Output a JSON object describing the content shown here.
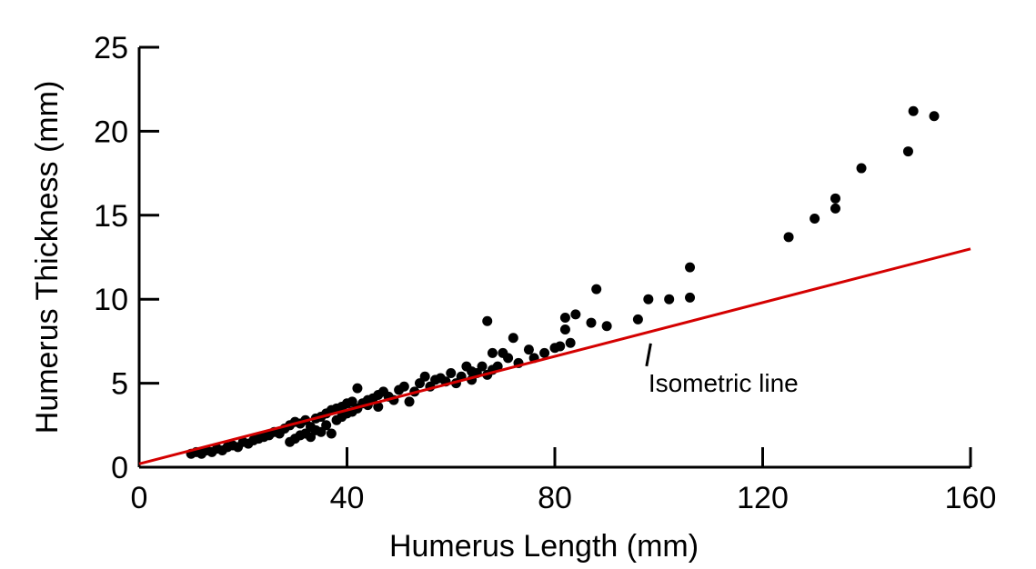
{
  "chart_data": {
    "type": "scatter",
    "xlabel": "Humerus Length (mm)",
    "ylabel": "Humerus Thickness (mm)",
    "xlim": [
      0,
      160
    ],
    "ylim": [
      0,
      25
    ],
    "xticks": [
      0,
      40,
      80,
      120,
      160
    ],
    "yticks": [
      0,
      5,
      10,
      15,
      20,
      25
    ],
    "grid": false,
    "legend": "none",
    "colors": {
      "points": "#000000",
      "line": "#d40000",
      "axes": "#000000"
    },
    "series": [
      {
        "kind": "scatter",
        "points": [
          [
            10,
            0.8
          ],
          [
            11,
            0.9
          ],
          [
            12,
            0.8
          ],
          [
            13,
            1.0
          ],
          [
            14,
            0.9
          ],
          [
            15,
            1.1
          ],
          [
            16,
            1.0
          ],
          [
            17,
            1.2
          ],
          [
            18,
            1.3
          ],
          [
            19,
            1.2
          ],
          [
            20,
            1.5
          ],
          [
            21,
            1.4
          ],
          [
            22,
            1.6
          ],
          [
            23,
            1.7
          ],
          [
            24,
            1.8
          ],
          [
            25,
            1.9
          ],
          [
            26,
            2.1
          ],
          [
            27,
            2.0
          ],
          [
            28,
            2.3
          ],
          [
            29,
            2.5
          ],
          [
            29,
            1.5
          ],
          [
            30,
            2.7
          ],
          [
            30,
            1.7
          ],
          [
            31,
            2.6
          ],
          [
            31,
            1.9
          ],
          [
            32,
            2.8
          ],
          [
            32,
            2.0
          ],
          [
            33,
            2.4
          ],
          [
            33,
            1.8
          ],
          [
            34,
            2.9
          ],
          [
            34,
            2.2
          ],
          [
            35,
            3.0
          ],
          [
            35,
            2.1
          ],
          [
            36,
            3.2
          ],
          [
            36,
            2.5
          ],
          [
            37,
            3.4
          ],
          [
            37,
            2.0
          ],
          [
            38,
            3.5
          ],
          [
            38,
            2.8
          ],
          [
            39,
            3.6
          ],
          [
            39,
            3.0
          ],
          [
            40,
            3.8
          ],
          [
            40,
            3.2
          ],
          [
            41,
            3.3
          ],
          [
            41,
            3.9
          ],
          [
            42,
            4.7
          ],
          [
            42,
            3.5
          ],
          [
            43,
            3.8
          ],
          [
            44,
            3.7
          ],
          [
            44,
            4.0
          ],
          [
            45,
            4.1
          ],
          [
            46,
            4.3
          ],
          [
            46,
            3.6
          ],
          [
            47,
            4.5
          ],
          [
            48,
            4.2
          ],
          [
            49,
            4.0
          ],
          [
            50,
            4.6
          ],
          [
            51,
            4.8
          ],
          [
            52,
            3.9
          ],
          [
            53,
            4.5
          ],
          [
            54,
            5.0
          ],
          [
            55,
            5.4
          ],
          [
            56,
            4.8
          ],
          [
            57,
            5.2
          ],
          [
            58,
            5.3
          ],
          [
            59,
            5.1
          ],
          [
            60,
            5.6
          ],
          [
            61,
            5.0
          ],
          [
            62,
            5.4
          ],
          [
            63,
            6.0
          ],
          [
            64,
            5.7
          ],
          [
            64,
            5.2
          ],
          [
            65,
            5.6
          ],
          [
            66,
            6.0
          ],
          [
            67,
            5.5
          ],
          [
            67,
            8.7
          ],
          [
            68,
            6.8
          ],
          [
            68,
            5.8
          ],
          [
            69,
            6.0
          ],
          [
            70,
            6.8
          ],
          [
            71,
            6.5
          ],
          [
            72,
            7.7
          ],
          [
            73,
            6.2
          ],
          [
            75,
            7.0
          ],
          [
            76,
            6.5
          ],
          [
            78,
            6.8
          ],
          [
            80,
            7.1
          ],
          [
            81,
            7.2
          ],
          [
            82,
            8.2
          ],
          [
            82,
            8.9
          ],
          [
            83,
            7.4
          ],
          [
            84,
            9.1
          ],
          [
            87,
            8.6
          ],
          [
            88,
            10.6
          ],
          [
            90,
            8.4
          ],
          [
            96,
            8.8
          ],
          [
            98,
            10.0
          ],
          [
            102,
            10.0
          ],
          [
            106,
            10.1
          ],
          [
            106,
            11.9
          ],
          [
            125,
            13.7
          ],
          [
            130,
            14.8
          ],
          [
            134,
            16.0
          ],
          [
            134,
            15.4
          ],
          [
            139,
            17.8
          ],
          [
            148,
            18.8
          ],
          [
            149,
            21.2
          ],
          [
            153,
            20.9
          ]
        ]
      },
      {
        "kind": "line",
        "points": [
          [
            0,
            0.2
          ],
          [
            160,
            13.0
          ]
        ]
      }
    ],
    "annotations": [
      {
        "text": "Isometric line",
        "target": [
          96,
          7.8
        ],
        "text_at": [
          98,
          4.5
        ]
      }
    ]
  }
}
